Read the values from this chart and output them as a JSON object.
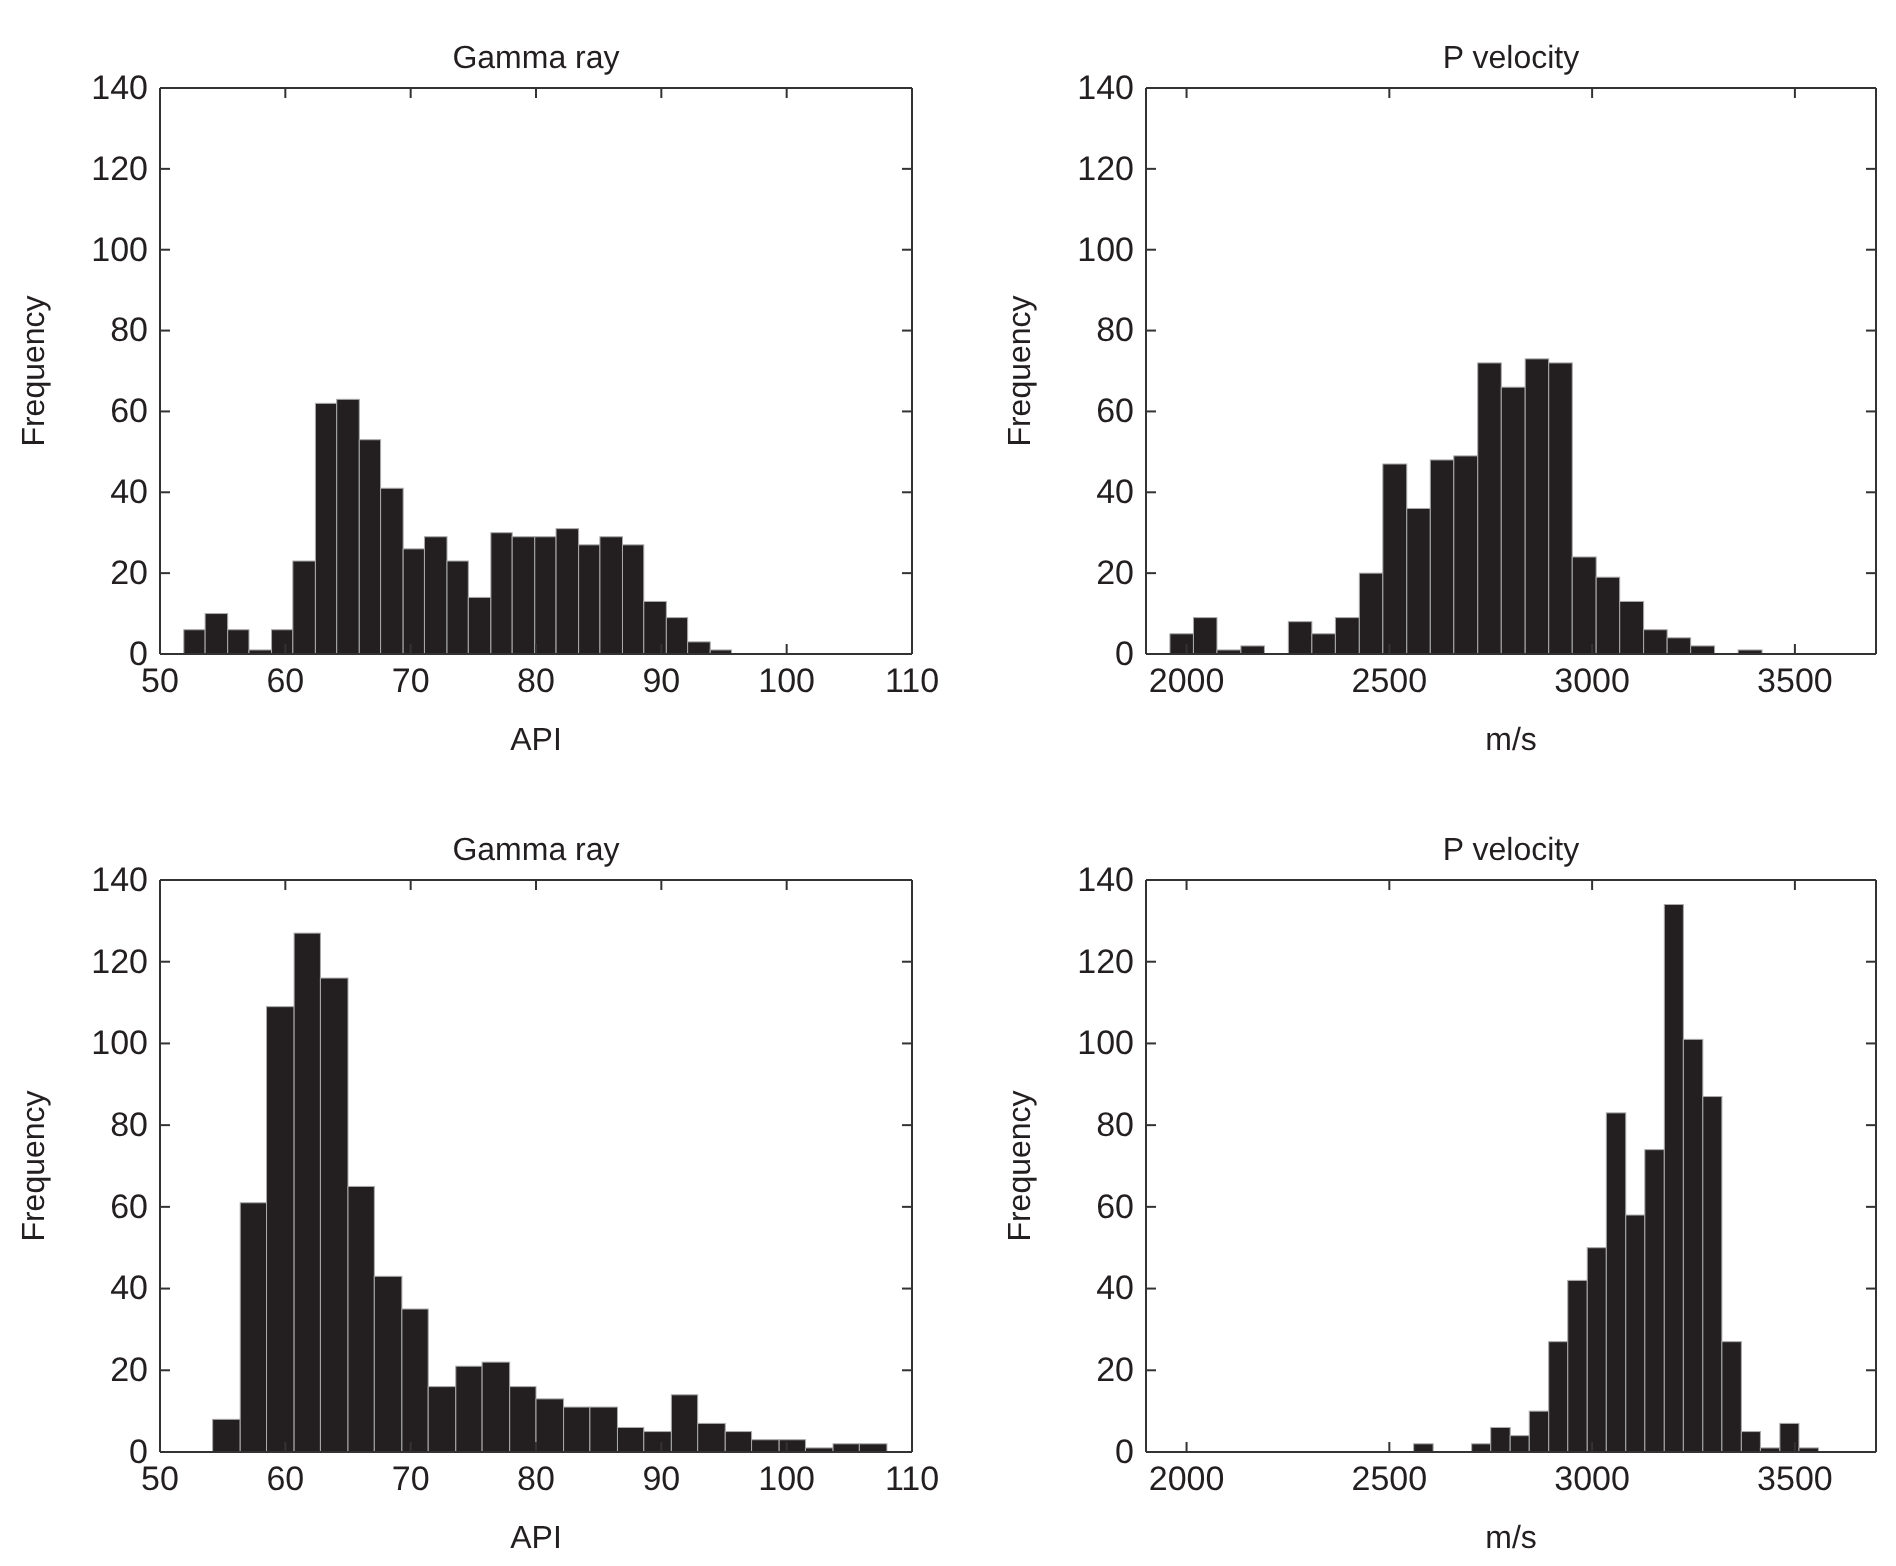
{
  "chart_data": [
    {
      "type": "histogram",
      "title": "Gamma ray",
      "xlabel": "API",
      "ylabel": "Frequency",
      "color": "#231f20",
      "xlim": [
        50,
        110
      ],
      "xticks": [
        50,
        60,
        70,
        80,
        90,
        100,
        110
      ],
      "ylim": [
        0,
        140
      ],
      "yticks": [
        0,
        20,
        40,
        60,
        80,
        100,
        120,
        140
      ],
      "grid": false,
      "bins": [
        51.9,
        53.6,
        55.4,
        57.1,
        58.9,
        60.6,
        62.4,
        64.1,
        65.9,
        67.6,
        69.4,
        71.1,
        72.9,
        74.6,
        76.4,
        78.1,
        79.9,
        81.6,
        83.4,
        85.1,
        86.9,
        88.6,
        90.4,
        92.1,
        93.9,
        95.6
      ],
      "values": [
        6,
        10,
        6,
        1,
        6,
        23,
        62,
        63,
        53,
        41,
        26,
        29,
        23,
        14,
        30,
        29,
        29,
        31,
        27,
        29,
        27,
        13,
        9,
        3,
        1
      ]
    },
    {
      "type": "histogram",
      "title": "P velocity",
      "xlabel": "m/s",
      "ylabel": "Frequency",
      "color": "#231f20",
      "xlim": [
        1900,
        3700
      ],
      "xticks": [
        2000,
        2500,
        3000,
        3500
      ],
      "ylim": [
        0,
        140
      ],
      "yticks": [
        0,
        20,
        40,
        60,
        80,
        100,
        120,
        140
      ],
      "grid": false,
      "bins": [
        1959,
        2017,
        2075,
        2134,
        2192,
        2251,
        2309,
        2367,
        2426,
        2484,
        2543,
        2601,
        2659,
        2718,
        2776,
        2835,
        2893,
        2951,
        3010,
        3068,
        3127,
        3185,
        3243,
        3302,
        3360,
        3419
      ],
      "values": [
        5,
        9,
        1,
        2,
        0,
        8,
        5,
        9,
        20,
        47,
        36,
        48,
        49,
        72,
        66,
        73,
        72,
        24,
        19,
        13,
        6,
        4,
        2,
        0,
        1
      ]
    },
    {
      "type": "histogram",
      "title": "Gamma ray",
      "xlabel": "API",
      "ylabel": "Frequency",
      "color": "#231f20",
      "xlim": [
        50,
        110
      ],
      "xticks": [
        50,
        60,
        70,
        80,
        90,
        100,
        110
      ],
      "ylim": [
        0,
        140
      ],
      "yticks": [
        0,
        20,
        40,
        60,
        80,
        100,
        120,
        140
      ],
      "grid": false,
      "bins": [
        54.2,
        56.4,
        58.5,
        60.7,
        62.8,
        65.0,
        67.1,
        69.3,
        71.4,
        73.6,
        75.7,
        77.9,
        80.0,
        82.2,
        84.3,
        86.5,
        88.6,
        90.8,
        92.9,
        95.1,
        97.2,
        99.4,
        101.5,
        103.7,
        105.8,
        108.0
      ],
      "values": [
        8,
        61,
        109,
        127,
        116,
        65,
        43,
        35,
        16,
        21,
        22,
        16,
        13,
        11,
        11,
        6,
        5,
        14,
        7,
        5,
        3,
        3,
        1,
        2,
        2
      ]
    },
    {
      "type": "histogram",
      "title": "P velocity",
      "xlabel": "m/s",
      "ylabel": "Frequency",
      "color": "#231f20",
      "xlim": [
        1900,
        3700
      ],
      "xticks": [
        2000,
        2500,
        3000,
        3500
      ],
      "ylim": [
        0,
        140
      ],
      "yticks": [
        0,
        20,
        40,
        60,
        80,
        100,
        120,
        140
      ],
      "grid": false,
      "bins": [
        2560,
        2608,
        2655,
        2703,
        2750,
        2798,
        2845,
        2893,
        2940,
        2988,
        3035,
        3083,
        3130,
        3178,
        3225,
        3273,
        3320,
        3368,
        3415,
        3463,
        3510,
        3558
      ],
      "values": [
        2,
        0,
        0,
        2,
        6,
        4,
        10,
        27,
        42,
        50,
        83,
        58,
        74,
        134,
        101,
        87,
        27,
        5,
        1,
        7,
        1
      ]
    }
  ]
}
